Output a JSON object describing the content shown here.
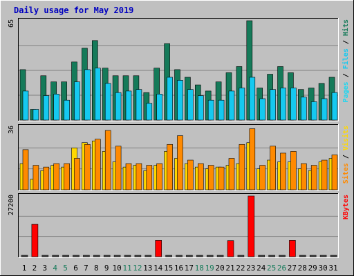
{
  "colors": {
    "background": "#c0c0c0",
    "title": "#0000c0",
    "hits": "#157a59",
    "files": "#15c9f0",
    "pages": "#1fd6f0",
    "visits": "#ffd800",
    "sites": "#ff8a00",
    "kbytes": "#ff0000",
    "weekend_label": "#157a59"
  },
  "chart_data": {
    "type": "bar",
    "title": "Daily usage for May 2019",
    "categories": [
      "1",
      "2",
      "3",
      "4",
      "5",
      "6",
      "7",
      "8",
      "9",
      "10",
      "11",
      "12",
      "13",
      "14",
      "15",
      "16",
      "17",
      "18",
      "19",
      "20",
      "21",
      "22",
      "23",
      "24",
      "25",
      "26",
      "27",
      "28",
      "29",
      "30",
      "31"
    ],
    "weekend_days": [
      "4",
      "5",
      "11",
      "12",
      "18",
      "19",
      "25",
      "26"
    ],
    "panels": [
      {
        "name": "hits-files-pages",
        "ymax_label": "65",
        "ymax": 65,
        "legend": [
          "Pages",
          "Files",
          "Hits"
        ],
        "series": [
          {
            "name": "Hits",
            "values": [
              33,
              7,
              29,
              25,
              25,
              38,
              47,
              52,
              34,
              29,
              29,
              29,
              18,
              34,
              50,
              33,
              28,
              23,
              19,
              25,
              31,
              35,
              65,
              21,
              30,
              35,
              31,
              20,
              21,
              24,
              28
            ]
          },
          {
            "name": "Files",
            "values": [
              19,
              7,
              16,
              17,
              13,
              25,
              33,
              34,
              24,
              18,
              19,
              20,
              11,
              17,
              28,
              26,
              20,
              16,
              13,
              13,
              19,
              21,
              28,
              14,
              20,
              21,
              21,
              15,
              12,
              14,
              18
            ]
          },
          {
            "name": "Pages",
            "values": [
              19,
              7,
              16,
              17,
              13,
              25,
              33,
              34,
              24,
              18,
              19,
              20,
              11,
              17,
              28,
              26,
              20,
              16,
              13,
              13,
              19,
              21,
              28,
              14,
              20,
              21,
              21,
              15,
              12,
              14,
              18
            ]
          }
        ]
      },
      {
        "name": "visits-sites",
        "ymax_label": "36",
        "ymax": 36,
        "legend": [
          "Sites",
          "Visits"
        ],
        "series": [
          {
            "name": "Visits",
            "values": [
              15,
              6,
              11,
              14,
              13,
              24,
              27,
              28,
              22,
              16,
              13,
              14,
              11,
              14,
              22,
              18,
              15,
              13,
              12,
              13,
              14,
              15,
              27,
              12,
              17,
              16,
              16,
              12,
              11,
              16,
              18
            ]
          },
          {
            "name": "Sites",
            "values": [
              23,
              14,
              13,
              15,
              15,
              18,
              26,
              29,
              34,
              25,
              15,
              15,
              14,
              15,
              26,
              31,
              17,
              15,
              14,
              13,
              18,
              26,
              35,
              14,
              25,
              21,
              22,
              15,
              14,
              17,
              20
            ]
          }
        ]
      },
      {
        "name": "kbytes",
        "ymax_label": "27200",
        "ymax": 27200,
        "legend": [
          "KBytes"
        ],
        "series": [
          {
            "name": "KBytes",
            "values": [
              0,
              14500,
              0,
              0,
              0,
              0,
              0,
              0,
              0,
              0,
              0,
              0,
              0,
              7300,
              0,
              0,
              0,
              0,
              0,
              0,
              7200,
              0,
              27200,
              0,
              0,
              0,
              7300,
              0,
              0,
              0,
              0
            ]
          }
        ]
      }
    ]
  }
}
